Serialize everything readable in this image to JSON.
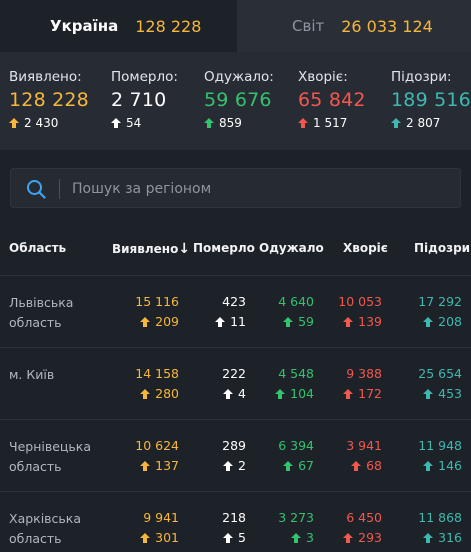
{
  "colors": {
    "confirmed": "#f6b73c",
    "deaths": "#ffffff",
    "recovered": "#34c26e",
    "sick": "#f2584e",
    "suspected": "#3fb8b0"
  },
  "tabs": [
    {
      "name": "Україна",
      "value": "128 228",
      "active": true
    },
    {
      "name": "Світ",
      "value": "26 033 124",
      "active": false
    }
  ],
  "summary": [
    {
      "label": "Виявлено:",
      "value": "128 228",
      "delta": "2 430",
      "color": "confirmed"
    },
    {
      "label": "Померло:",
      "value": "2 710",
      "delta": "54",
      "color": "deaths"
    },
    {
      "label": "Одужало:",
      "value": "59 676",
      "delta": "859",
      "color": "recovered"
    },
    {
      "label": "Хворіє:",
      "value": "65 842",
      "delta": "1 517",
      "color": "sick"
    },
    {
      "label": "Підозри:",
      "value": "189 516",
      "delta": "2 807",
      "color": "suspected"
    }
  ],
  "search": {
    "placeholder": "Пошук за регіоном",
    "icon": "search-icon"
  },
  "table": {
    "headers": {
      "region": "Область",
      "confirmed": "Виявлено",
      "deaths": "Померло",
      "recovered": "Одужало",
      "sick": "Хворіє",
      "suspected": "Підозри"
    },
    "sort_indicator": "↓",
    "rows": [
      {
        "region": [
          "Львівська",
          "область"
        ],
        "confirmed": "15 116",
        "confirmed_d": "209",
        "deaths": "423",
        "deaths_d": "11",
        "recovered": "4 640",
        "recovered_d": "59",
        "sick": "10 053",
        "sick_d": "139",
        "suspected": "17 292",
        "suspected_d": "208"
      },
      {
        "region": [
          "м. Київ",
          ""
        ],
        "confirmed": "14 158",
        "confirmed_d": "280",
        "deaths": "222",
        "deaths_d": "4",
        "recovered": "4 548",
        "recovered_d": "104",
        "sick": "9 388",
        "sick_d": "172",
        "suspected": "25 654",
        "suspected_d": "453"
      },
      {
        "region": [
          "Чернівецька",
          "область"
        ],
        "confirmed": "10 624",
        "confirmed_d": "137",
        "deaths": "289",
        "deaths_d": "2",
        "recovered": "6 394",
        "recovered_d": "67",
        "sick": "3 941",
        "sick_d": "68",
        "suspected": "11 948",
        "suspected_d": "146"
      },
      {
        "region": [
          "Харківська",
          "область"
        ],
        "confirmed": "9 941",
        "confirmed_d": "301",
        "deaths": "218",
        "deaths_d": "5",
        "recovered": "3 273",
        "recovered_d": "3",
        "sick": "6 450",
        "sick_d": "293",
        "suspected": "11 868",
        "suspected_d": "316"
      }
    ]
  }
}
